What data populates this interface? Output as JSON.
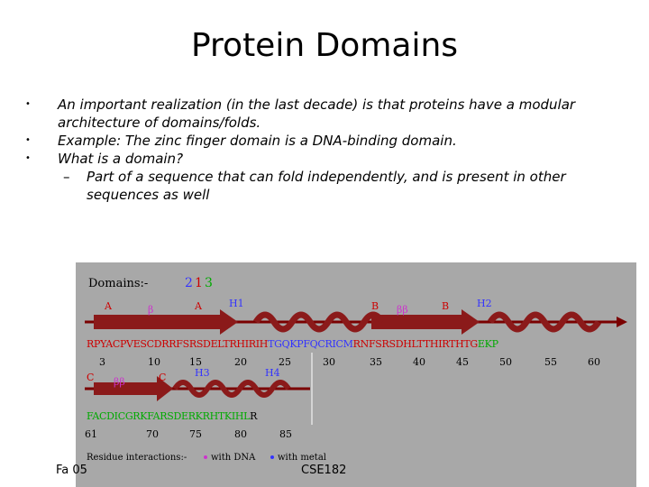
{
  "slide": {
    "title": "Protein Domains",
    "bullets": [
      "An important realization (in the last decade) is that proteins have a modular architecture of domains/folds.",
      "Example: The zinc finger domain is a DNA-binding domain.",
      "What is a domain?"
    ],
    "sub_bullets": [
      "Part of a sequence that can fold independently, and is present in other sequences as well"
    ],
    "footer_left": "Fa 05",
    "footer_right": "CSE182"
  },
  "figure": {
    "header_label": "Domains:-",
    "domain_numbers": [
      "1",
      "2",
      "3"
    ],
    "domain_colors": [
      "#cc0000",
      "#3333ff",
      "#00aa00"
    ],
    "row1": {
      "labels": [
        "A",
        "β",
        "A",
        "H1",
        "B",
        "ββ",
        "B",
        "H2"
      ],
      "seq_red": "RPYACPVESCDRRFSRSDELTRHIRIH",
      "seq_blue": "TGQKPFQCRICM",
      "seq_red2": "RNFSRSDHLTTHIRTHTG",
      "seq_green": "EKP",
      "ticks": [
        "3",
        "10",
        "15",
        "20",
        "25",
        "30",
        "35",
        "40",
        "45",
        "50",
        "55",
        "60"
      ]
    },
    "row2": {
      "labels": [
        "C",
        "ββ",
        "C",
        "H3",
        "H4"
      ],
      "seq_green": "FACDICGRKFARSDERKRHTKIHL",
      "seq_end": "R",
      "ticks": [
        "61",
        "70",
        "75",
        "80",
        "85"
      ]
    },
    "legend": {
      "prefix": "Residue interactions:-",
      "dna": "with DNA",
      "metal": "with metal"
    }
  }
}
